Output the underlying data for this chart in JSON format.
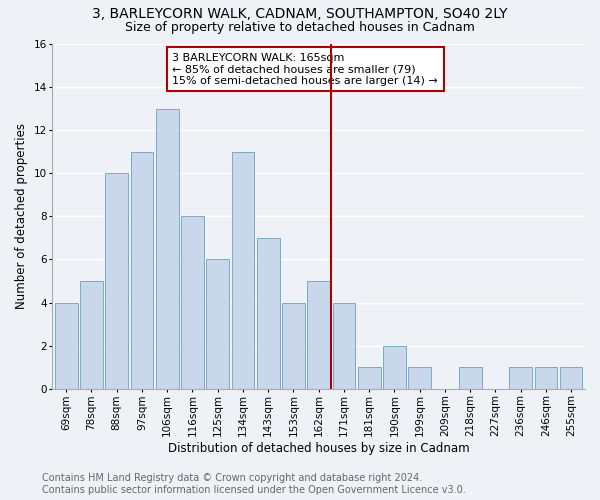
{
  "title": "3, BARLEYCORN WALK, CADNAM, SOUTHAMPTON, SO40 2LY",
  "subtitle": "Size of property relative to detached houses in Cadnam",
  "xlabel": "Distribution of detached houses by size in Cadnam",
  "ylabel": "Number of detached properties",
  "categories": [
    "69sqm",
    "78sqm",
    "88sqm",
    "97sqm",
    "106sqm",
    "116sqm",
    "125sqm",
    "134sqm",
    "143sqm",
    "153sqm",
    "162sqm",
    "171sqm",
    "181sqm",
    "190sqm",
    "199sqm",
    "209sqm",
    "218sqm",
    "227sqm",
    "236sqm",
    "246sqm",
    "255sqm"
  ],
  "values": [
    4,
    5,
    10,
    11,
    13,
    8,
    6,
    11,
    7,
    4,
    5,
    4,
    1,
    2,
    1,
    0,
    1,
    0,
    1,
    1,
    1
  ],
  "bar_color": "#c8d8ea",
  "bar_edge_color": "#7aaac8",
  "subject_line_color": "#aa0000",
  "annotation_text": "3 BARLEYCORN WALK: 165sqm\n← 85% of detached houses are smaller (79)\n15% of semi-detached houses are larger (14) →",
  "annotation_box_color": "#aa0000",
  "ylim": [
    0,
    16
  ],
  "yticks": [
    0,
    2,
    4,
    6,
    8,
    10,
    12,
    14,
    16
  ],
  "footer_line1": "Contains HM Land Registry data © Crown copyright and database right 2024.",
  "footer_line2": "Contains public sector information licensed under the Open Government Licence v3.0.",
  "background_color": "#eef2f7",
  "grid_color": "#ffffff",
  "title_fontsize": 10,
  "subtitle_fontsize": 9,
  "xlabel_fontsize": 8.5,
  "ylabel_fontsize": 8.5,
  "tick_fontsize": 7.5,
  "annotation_fontsize": 8,
  "footer_fontsize": 7
}
